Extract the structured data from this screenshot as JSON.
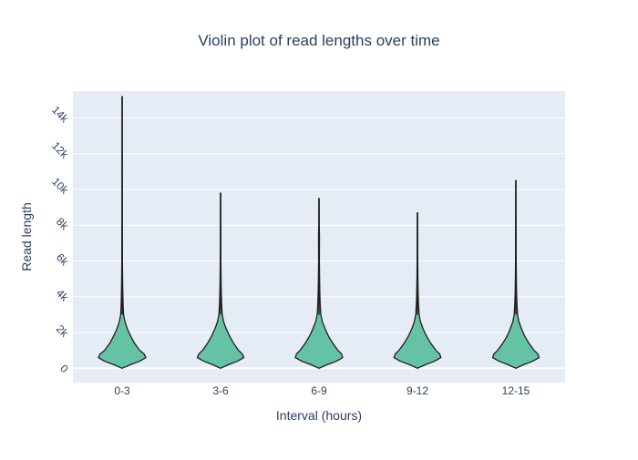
{
  "chart_data": {
    "type": "violin",
    "title": "Violin plot of read lengths over time",
    "xlabel": "Interval (hours)",
    "ylabel": "Read length",
    "categories": [
      "0-3",
      "3-6",
      "6-9",
      "9-12",
      "12-15"
    ],
    "ylim": [
      -800,
      15500
    ],
    "y_ticks": [
      0,
      2000,
      4000,
      6000,
      8000,
      10000,
      12000,
      14000
    ],
    "y_tick_labels": [
      "0",
      "2k",
      "4k",
      "6k",
      "8k",
      "10k",
      "12k",
      "14k"
    ],
    "grid": true,
    "colors": {
      "fill": "#66c2a5",
      "line": "#1f1f1f",
      "plot_bg": "#e5ecf6",
      "grid": "#ffffff",
      "text": "#2a3f5f"
    },
    "violins": [
      {
        "category": "0-3",
        "min": 0,
        "max": 15200,
        "density": [
          [
            0,
            0
          ],
          [
            200,
            0.35
          ],
          [
            400,
            0.75
          ],
          [
            600,
            1.0
          ],
          [
            800,
            0.93
          ],
          [
            1000,
            0.74
          ],
          [
            1400,
            0.52
          ],
          [
            1800,
            0.36
          ],
          [
            2200,
            0.22
          ],
          [
            2600,
            0.12
          ],
          [
            3000,
            0.06
          ],
          [
            3600,
            0.04
          ],
          [
            4200,
            0.03
          ],
          [
            5000,
            0.02
          ],
          [
            6000,
            0.012
          ],
          [
            8000,
            0.008
          ],
          [
            11000,
            0.006
          ],
          [
            15200,
            0.004
          ]
        ]
      },
      {
        "category": "3-6",
        "min": 0,
        "max": 9800,
        "density": [
          [
            0,
            0
          ],
          [
            200,
            0.33
          ],
          [
            400,
            0.72
          ],
          [
            600,
            0.98
          ],
          [
            800,
            0.92
          ],
          [
            1000,
            0.76
          ],
          [
            1400,
            0.55
          ],
          [
            1800,
            0.38
          ],
          [
            2200,
            0.24
          ],
          [
            2600,
            0.13
          ],
          [
            3000,
            0.07
          ],
          [
            3600,
            0.045
          ],
          [
            4200,
            0.03
          ],
          [
            5000,
            0.02
          ],
          [
            6000,
            0.012
          ],
          [
            8000,
            0.008
          ],
          [
            9800,
            0.004
          ]
        ]
      },
      {
        "category": "6-9",
        "min": 0,
        "max": 9500,
        "density": [
          [
            0,
            0
          ],
          [
            200,
            0.34
          ],
          [
            400,
            0.74
          ],
          [
            600,
            1.0
          ],
          [
            800,
            0.95
          ],
          [
            1000,
            0.8
          ],
          [
            1400,
            0.58
          ],
          [
            1800,
            0.4
          ],
          [
            2200,
            0.26
          ],
          [
            2600,
            0.14
          ],
          [
            3000,
            0.075
          ],
          [
            3600,
            0.05
          ],
          [
            4200,
            0.035
          ],
          [
            5000,
            0.025
          ],
          [
            6000,
            0.015
          ],
          [
            7400,
            0.02
          ],
          [
            8000,
            0.008
          ],
          [
            9500,
            0.004
          ]
        ]
      },
      {
        "category": "9-12",
        "min": 0,
        "max": 8700,
        "density": [
          [
            0,
            0
          ],
          [
            200,
            0.33
          ],
          [
            400,
            0.73
          ],
          [
            600,
            0.99
          ],
          [
            800,
            0.94
          ],
          [
            1000,
            0.78
          ],
          [
            1400,
            0.56
          ],
          [
            1800,
            0.38
          ],
          [
            2200,
            0.24
          ],
          [
            2600,
            0.13
          ],
          [
            3000,
            0.07
          ],
          [
            3600,
            0.045
          ],
          [
            4200,
            0.03
          ],
          [
            5000,
            0.02
          ],
          [
            6000,
            0.012
          ],
          [
            7500,
            0.008
          ],
          [
            8700,
            0.004
          ]
        ]
      },
      {
        "category": "12-15",
        "min": 0,
        "max": 10500,
        "density": [
          [
            0,
            0
          ],
          [
            200,
            0.33
          ],
          [
            400,
            0.72
          ],
          [
            600,
            0.98
          ],
          [
            800,
            0.93
          ],
          [
            1000,
            0.77
          ],
          [
            1400,
            0.55
          ],
          [
            1800,
            0.37
          ],
          [
            2200,
            0.24
          ],
          [
            2600,
            0.13
          ],
          [
            3000,
            0.07
          ],
          [
            3600,
            0.045
          ],
          [
            4200,
            0.03
          ],
          [
            5000,
            0.02
          ],
          [
            6000,
            0.012
          ],
          [
            8000,
            0.008
          ],
          [
            10500,
            0.004
          ]
        ]
      }
    ]
  }
}
